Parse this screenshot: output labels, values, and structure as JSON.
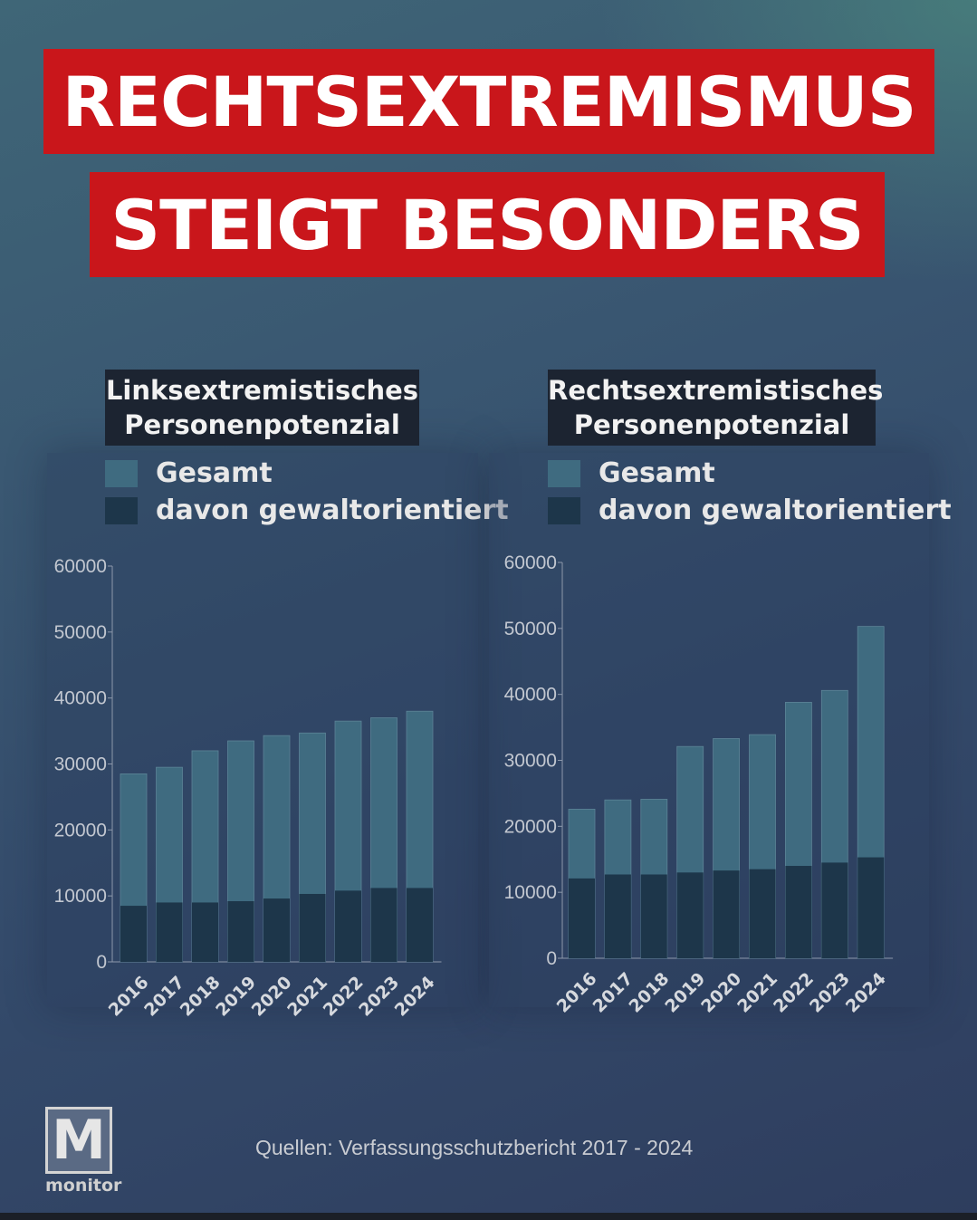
{
  "headline": {
    "line1": "RECHTSEXTREMISMUS",
    "line2": "STEIGT BESONDERS"
  },
  "colors": {
    "headline_bg": "#c9161b",
    "gesamt": "#3f6b80",
    "gewaltorientiert": "#1d364a",
    "title_box": "#1c2431"
  },
  "legend": {
    "gesamt": "Gesamt",
    "gewaltorientiert": "davon gewaltorientiert"
  },
  "chart_data": [
    {
      "type": "bar",
      "stacking": "overlay",
      "title_line1": "Linksextremistisches",
      "title_line2": "Personenpotenzial",
      "categories": [
        "2016",
        "2017",
        "2018",
        "2019",
        "2020",
        "2021",
        "2022",
        "2023",
        "2024"
      ],
      "series": [
        {
          "name": "Gesamt",
          "values": [
            28500,
            29500,
            32000,
            33500,
            34300,
            34700,
            36500,
            37000,
            38000
          ]
        },
        {
          "name": "davon gewaltorientiert",
          "values": [
            8500,
            9000,
            9000,
            9200,
            9600,
            10300,
            10800,
            11200,
            11200
          ]
        }
      ],
      "yticks": [
        "0",
        "10000",
        "20000",
        "30000",
        "40000",
        "50000",
        "60000"
      ],
      "ylim": [
        0,
        60000
      ],
      "grid": false
    },
    {
      "type": "bar",
      "stacking": "overlay",
      "title_line1": "Rechtsextremistisches",
      "title_line2": "Personenpotenzial",
      "categories": [
        "2016",
        "2017",
        "2018",
        "2019",
        "2020",
        "2021",
        "2022",
        "2023",
        "2024"
      ],
      "series": [
        {
          "name": "Gesamt",
          "values": [
            22600,
            24000,
            24100,
            32100,
            33300,
            33900,
            38800,
            40600,
            50300
          ]
        },
        {
          "name": "davon gewaltorientiert",
          "values": [
            12100,
            12700,
            12700,
            13000,
            13300,
            13500,
            14000,
            14500,
            15300
          ]
        }
      ],
      "yticks": [
        "0",
        "10000",
        "20000",
        "30000",
        "40000",
        "50000",
        "60000"
      ],
      "ylim": [
        0,
        60000
      ],
      "grid": false
    }
  ],
  "footer": {
    "source": "Quellen: Verfassungsschutzbericht 2017 - 2024",
    "logo_letter": "M",
    "logo_text": "monitor"
  }
}
